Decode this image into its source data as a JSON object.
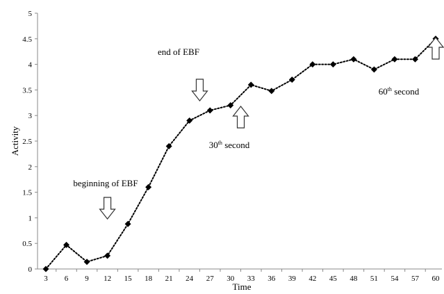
{
  "chart_data": {
    "type": "line",
    "title": "",
    "xlabel": "Time",
    "ylabel": "Activity",
    "ylim": [
      0,
      5
    ],
    "y_ticks": [
      "0",
      "0.5",
      "1",
      "1.5",
      "2",
      "2.5",
      "3",
      "3.5",
      "4",
      "4.5",
      "5"
    ],
    "grid": false,
    "legend": "none",
    "line_style": "dotted",
    "marker": "diamond",
    "color": "#000000",
    "x": [
      "3",
      "6",
      "9",
      "12",
      "15",
      "18",
      "21",
      "24",
      "27",
      "30",
      "33",
      "36",
      "39",
      "42",
      "45",
      "48",
      "51",
      "54",
      "57",
      "60"
    ],
    "values": [
      0,
      0.47,
      0.14,
      0.26,
      0.88,
      1.6,
      2.4,
      2.9,
      3.1,
      3.2,
      3.6,
      3.48,
      3.7,
      4.0,
      4.0,
      4.1,
      3.9,
      4.1,
      4.1,
      4.5
    ],
    "annotations": [
      {
        "text": "beginning of EBF",
        "x": 12,
        "arrow": "down"
      },
      {
        "text": "end of EBF",
        "x": 25.5,
        "arrow": "down"
      },
      {
        "base": "30",
        "sup": "th",
        "rest": " second",
        "x": 31.5,
        "arrow": "up"
      },
      {
        "base": "60",
        "sup": "th",
        "rest": " second",
        "x": 60,
        "arrow": "up"
      }
    ]
  }
}
